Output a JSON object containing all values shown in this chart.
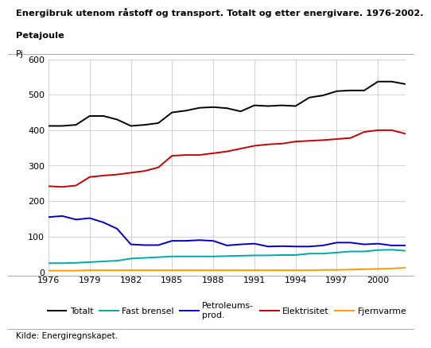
{
  "years": [
    1976,
    1977,
    1978,
    1979,
    1980,
    1981,
    1982,
    1983,
    1984,
    1985,
    1986,
    1987,
    1988,
    1989,
    1990,
    1991,
    1992,
    1993,
    1994,
    1995,
    1996,
    1997,
    1998,
    1999,
    2000,
    2001,
    2002
  ],
  "totalt": [
    412,
    412,
    415,
    440,
    440,
    430,
    412,
    415,
    420,
    450,
    455,
    463,
    465,
    462,
    453,
    470,
    468,
    470,
    468,
    492,
    498,
    510,
    512,
    512,
    537,
    537,
    530
  ],
  "fast_brensel": [
    25,
    25,
    26,
    28,
    30,
    32,
    38,
    40,
    42,
    44,
    44,
    44,
    44,
    45,
    46,
    47,
    47,
    48,
    48,
    52,
    52,
    55,
    58,
    58,
    62,
    63,
    60
  ],
  "petroleums": [
    155,
    158,
    148,
    152,
    140,
    122,
    78,
    76,
    76,
    88,
    88,
    90,
    88,
    75,
    78,
    80,
    72,
    73,
    72,
    72,
    75,
    83,
    83,
    78,
    80,
    75,
    75
  ],
  "elektrisitet": [
    242,
    240,
    244,
    268,
    272,
    275,
    280,
    285,
    295,
    328,
    330,
    330,
    335,
    340,
    348,
    356,
    360,
    362,
    368,
    370,
    372,
    375,
    378,
    395,
    400,
    400,
    390
  ],
  "fjernvarme": [
    4,
    4,
    4,
    5,
    5,
    5,
    5,
    5,
    5,
    5,
    5,
    5,
    5,
    5,
    5,
    5,
    5,
    5,
    5,
    5,
    6,
    6,
    7,
    8,
    9,
    10,
    12
  ],
  "title_line1": "Energibruk utenom råstoff og transport. Totalt og etter energivare. 1976-2002.",
  "title_line2": "Petajoule",
  "pj_label": "Pj",
  "ylim": [
    0,
    600
  ],
  "yticks": [
    0,
    100,
    200,
    300,
    400,
    500,
    600
  ],
  "xticks": [
    1976,
    1979,
    1982,
    1985,
    1988,
    1991,
    1994,
    1997,
    2000
  ],
  "legend_labels": [
    "Totalt",
    "Fast brensel",
    "Petroleums-\nprod.",
    "Elektrisitet",
    "Fjernvarme"
  ],
  "colors": {
    "totalt": "#000000",
    "fast_brensel": "#00aaaa",
    "petroleums": "#0000cc",
    "elektrisitet": "#cc0000",
    "fjernvarme": "#ff9900"
  },
  "source": "Kilde: Energiregnskapet.",
  "background_color": "#ffffff",
  "grid_color": "#cccccc"
}
